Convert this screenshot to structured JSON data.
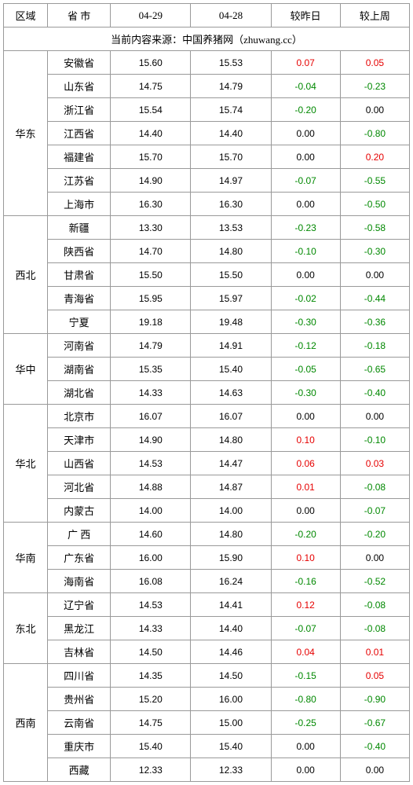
{
  "headers": {
    "region": "区域",
    "province": "省 市",
    "date1": "04-29",
    "date2": "04-28",
    "change_prev_day": "较昨日",
    "change_prev_week": "较上周"
  },
  "source_line": "当前内容来源：中国养猪网（zhuwang.cc）",
  "colors": {
    "positive": "#e60000",
    "negative": "#008800",
    "zero": "#000000",
    "border": "#999999",
    "background": "#ffffff"
  },
  "groups": [
    {
      "region": "华东",
      "rows": [
        {
          "province": "安徽省",
          "v1": "15.60",
          "v2": "15.53",
          "d1": "0.07",
          "d2": "0.05"
        },
        {
          "province": "山东省",
          "v1": "14.75",
          "v2": "14.79",
          "d1": "-0.04",
          "d2": "-0.23"
        },
        {
          "province": "浙江省",
          "v1": "15.54",
          "v2": "15.74",
          "d1": "-0.20",
          "d2": "0.00"
        },
        {
          "province": "江西省",
          "v1": "14.40",
          "v2": "14.40",
          "d1": "0.00",
          "d2": "-0.80"
        },
        {
          "province": "福建省",
          "v1": "15.70",
          "v2": "15.70",
          "d1": "0.00",
          "d2": "0.20"
        },
        {
          "province": "江苏省",
          "v1": "14.90",
          "v2": "14.97",
          "d1": "-0.07",
          "d2": "-0.55"
        },
        {
          "province": "上海市",
          "v1": "16.30",
          "v2": "16.30",
          "d1": "0.00",
          "d2": "-0.50"
        }
      ]
    },
    {
      "region": "西北",
      "rows": [
        {
          "province": "新疆",
          "v1": "13.30",
          "v2": "13.53",
          "d1": "-0.23",
          "d2": "-0.58"
        },
        {
          "province": "陕西省",
          "v1": "14.70",
          "v2": "14.80",
          "d1": "-0.10",
          "d2": "-0.30"
        },
        {
          "province": "甘肃省",
          "v1": "15.50",
          "v2": "15.50",
          "d1": "0.00",
          "d2": "0.00"
        },
        {
          "province": "青海省",
          "v1": "15.95",
          "v2": "15.97",
          "d1": "-0.02",
          "d2": "-0.44"
        },
        {
          "province": "宁夏",
          "v1": "19.18",
          "v2": "19.48",
          "d1": "-0.30",
          "d2": "-0.36"
        }
      ]
    },
    {
      "region": "华中",
      "rows": [
        {
          "province": "河南省",
          "v1": "14.79",
          "v2": "14.91",
          "d1": "-0.12",
          "d2": "-0.18"
        },
        {
          "province": "湖南省",
          "v1": "15.35",
          "v2": "15.40",
          "d1": "-0.05",
          "d2": "-0.65"
        },
        {
          "province": "湖北省",
          "v1": "14.33",
          "v2": "14.63",
          "d1": "-0.30",
          "d2": "-0.40"
        }
      ]
    },
    {
      "region": "华北",
      "rows": [
        {
          "province": "北京市",
          "v1": "16.07",
          "v2": "16.07",
          "d1": "0.00",
          "d2": "0.00"
        },
        {
          "province": "天津市",
          "v1": "14.90",
          "v2": "14.80",
          "d1": "0.10",
          "d2": "-0.10"
        },
        {
          "province": "山西省",
          "v1": "14.53",
          "v2": "14.47",
          "d1": "0.06",
          "d2": "0.03"
        },
        {
          "province": "河北省",
          "v1": "14.88",
          "v2": "14.87",
          "d1": "0.01",
          "d2": "-0.08"
        },
        {
          "province": "内蒙古",
          "v1": "14.00",
          "v2": "14.00",
          "d1": "0.00",
          "d2": "-0.07"
        }
      ]
    },
    {
      "region": "华南",
      "rows": [
        {
          "province": "广 西",
          "v1": "14.60",
          "v2": "14.80",
          "d1": "-0.20",
          "d2": "-0.20"
        },
        {
          "province": "广东省",
          "v1": "16.00",
          "v2": "15.90",
          "d1": "0.10",
          "d2": "0.00"
        },
        {
          "province": "海南省",
          "v1": "16.08",
          "v2": "16.24",
          "d1": "-0.16",
          "d2": "-0.52"
        }
      ]
    },
    {
      "region": "东北",
      "rows": [
        {
          "province": "辽宁省",
          "v1": "14.53",
          "v2": "14.41",
          "d1": "0.12",
          "d2": "-0.08"
        },
        {
          "province": "黑龙江",
          "v1": "14.33",
          "v2": "14.40",
          "d1": "-0.07",
          "d2": "-0.08"
        },
        {
          "province": "吉林省",
          "v1": "14.50",
          "v2": "14.46",
          "d1": "0.04",
          "d2": "0.01"
        }
      ]
    },
    {
      "region": "西南",
      "rows": [
        {
          "province": "四川省",
          "v1": "14.35",
          "v2": "14.50",
          "d1": "-0.15",
          "d2": "0.05"
        },
        {
          "province": "贵州省",
          "v1": "15.20",
          "v2": "16.00",
          "d1": "-0.80",
          "d2": "-0.90"
        },
        {
          "province": "云南省",
          "v1": "14.75",
          "v2": "15.00",
          "d1": "-0.25",
          "d2": "-0.67"
        },
        {
          "province": "重庆市",
          "v1": "15.40",
          "v2": "15.40",
          "d1": "0.00",
          "d2": "-0.40"
        },
        {
          "province": "西藏",
          "v1": "12.33",
          "v2": "12.33",
          "d1": "0.00",
          "d2": "0.00"
        }
      ]
    }
  ]
}
